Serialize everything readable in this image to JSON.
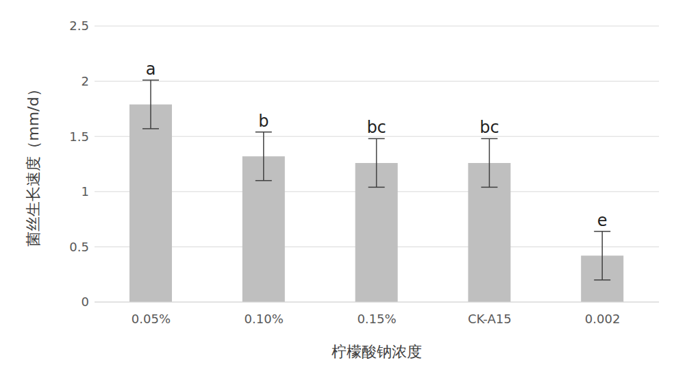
{
  "chart_data": {
    "type": "bar",
    "x_label": "柠檬酸钠浓度",
    "y_label": "菌丝生长速度（mm/d）",
    "categories": [
      "0.05%",
      "0.10%",
      "0.15%",
      "CK-A15",
      "0.002"
    ],
    "values": [
      1.79,
      1.32,
      1.26,
      1.26,
      0.42
    ],
    "error_bars": [
      0.22,
      0.22,
      0.22,
      0.22,
      0.22
    ],
    "annotations": [
      "a",
      "b",
      "bc",
      "bc",
      "e"
    ],
    "color": "#bfbfbf",
    "ylim": [
      0,
      2.5
    ],
    "yticks": [
      0,
      0.5,
      1,
      1.5,
      2,
      2.5
    ],
    "grid": true
  }
}
